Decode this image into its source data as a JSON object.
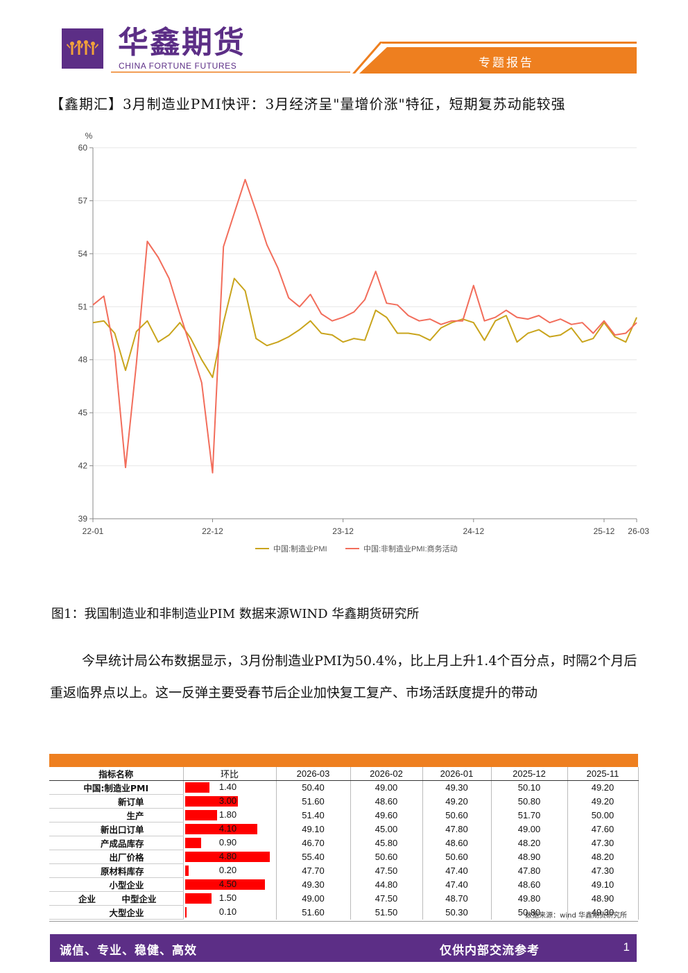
{
  "header": {
    "brand_cn": "华鑫期货",
    "brand_en": "CHINA FORTUNE FUTURES",
    "report_type": "专题报告",
    "colors": {
      "purple": "#5c2e86",
      "orange": "#ee7f1f",
      "logo_figures": "#f2a33a"
    }
  },
  "title": "【鑫期汇】3月制造业PMI快评：3月经济呈\"量增价涨\"特征，短期复苏动能较强",
  "chart_data": {
    "type": "line",
    "y_unit": "%",
    "ylim": [
      39,
      60
    ],
    "yticks": [
      39,
      42,
      45,
      48,
      51,
      54,
      57,
      60
    ],
    "x_tick_labels": [
      "22-01",
      "22-12",
      "23-12",
      "24-12",
      "25-12",
      "26-03"
    ],
    "x_tick_index": [
      0,
      11,
      23,
      35,
      47,
      50
    ],
    "grid": true,
    "legend_position": "bottom",
    "series": [
      {
        "name": "中国:制造业PMI",
        "color": "#c9a41c",
        "values": [
          50.1,
          50.2,
          49.5,
          47.4,
          49.6,
          50.2,
          49.0,
          49.4,
          50.1,
          49.2,
          48.0,
          47.0,
          50.1,
          52.6,
          51.9,
          49.2,
          48.8,
          49.0,
          49.3,
          49.7,
          50.2,
          49.5,
          49.4,
          49.0,
          49.2,
          49.1,
          50.8,
          50.4,
          49.5,
          49.5,
          49.4,
          49.1,
          49.8,
          50.1,
          50.3,
          50.1,
          49.1,
          50.2,
          50.5,
          49.0,
          49.5,
          49.7,
          49.3,
          49.4,
          49.8,
          49.0,
          49.2,
          50.1,
          49.3,
          49.0,
          50.4
        ]
      },
      {
        "name": "中国:非制造业PMI:商务活动",
        "color": "#f26d5b",
        "values": [
          51.1,
          51.6,
          48.4,
          41.9,
          47.8,
          54.7,
          53.8,
          52.6,
          50.6,
          48.7,
          46.7,
          41.6,
          54.4,
          56.3,
          58.2,
          56.4,
          54.5,
          53.2,
          51.5,
          51.0,
          51.7,
          50.6,
          50.2,
          50.4,
          50.7,
          51.4,
          53.0,
          51.2,
          51.1,
          50.5,
          50.2,
          50.3,
          50.0,
          50.2,
          50.2,
          52.2,
          50.2,
          50.4,
          50.8,
          50.4,
          50.3,
          50.5,
          50.1,
          50.3,
          50.0,
          50.1,
          49.5,
          50.2,
          49.4,
          49.5,
          50.1
        ]
      }
    ]
  },
  "figure_caption": "图1：我国制造业和非制造业PIM 数据来源WIND 华鑫期货研究所",
  "paragraph": "今早统计局公布数据显示，3月份制造业PMI为50.4%，比上月上升1.4个百分点，时隔2个月后重返临界点以上。这一反弹主要受春节后企业加快复工复产、市场活跃度提升的带动",
  "table": {
    "headers": [
      "指标名称",
      "环比",
      "2026-03",
      "2026-02",
      "2026-01",
      "2025-12",
      "2025-11"
    ],
    "rows": [
      {
        "name": "中国:制造业PMI",
        "mom": "1.40",
        "mom_value": 1.4,
        "cols": [
          "50.40",
          "49.00",
          "49.30",
          "50.10",
          "49.20"
        ]
      },
      {
        "name": "新订单",
        "mom": "3.00",
        "mom_value": 3.0,
        "cols": [
          "51.60",
          "48.60",
          "49.20",
          "50.80",
          "49.20"
        ]
      },
      {
        "name": "生产",
        "mom": "1.80",
        "mom_value": 1.8,
        "cols": [
          "51.40",
          "49.60",
          "50.60",
          "51.70",
          "50.00"
        ]
      },
      {
        "name": "新出口订单",
        "mom": "4.10",
        "mom_value": 4.1,
        "cols": [
          "49.10",
          "45.00",
          "47.80",
          "49.00",
          "47.60"
        ]
      },
      {
        "name": "产成品库存",
        "mom": "0.90",
        "mom_value": 0.9,
        "cols": [
          "46.70",
          "45.80",
          "48.60",
          "48.20",
          "47.30"
        ]
      },
      {
        "name": "出厂价格",
        "mom": "4.80",
        "mom_value": 4.8,
        "cols": [
          "55.40",
          "50.60",
          "50.60",
          "48.90",
          "48.20"
        ]
      },
      {
        "name": "原材料库存",
        "mom": "0.20",
        "mom_value": 0.2,
        "cols": [
          "47.70",
          "47.50",
          "47.40",
          "47.80",
          "47.30"
        ]
      },
      {
        "name": "小型企业",
        "mom": "4.50",
        "mom_value": 4.5,
        "cols": [
          "49.30",
          "44.80",
          "47.40",
          "48.60",
          "49.10"
        ]
      },
      {
        "name": "中型企业",
        "group": "企业",
        "mom": "1.50",
        "mom_value": 1.5,
        "cols": [
          "49.00",
          "47.50",
          "48.70",
          "49.80",
          "48.90"
        ]
      },
      {
        "name": "大型企业",
        "mom": "0.10",
        "mom_value": 0.1,
        "cols": [
          "51.60",
          "51.50",
          "50.30",
          "50.80",
          "49.30"
        ]
      }
    ],
    "source": "数据来源：wind 华鑫期货研究所"
  },
  "footer": {
    "left": "诚信、专业、稳健、高效",
    "right": "仅供内部交流参考",
    "page": "1"
  }
}
